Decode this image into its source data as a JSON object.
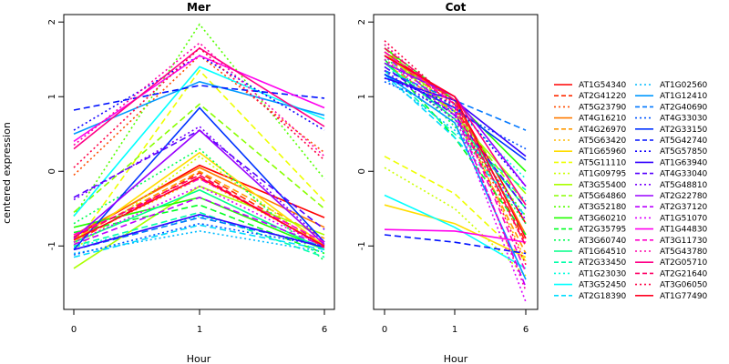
{
  "chart_data": {
    "type": "line",
    "ylabel": "centered expression",
    "panels": [
      {
        "title": "Mer",
        "xlabel": "Hour",
        "x_ticks": [
          "0",
          "1",
          "6"
        ],
        "y_ticks": [
          "-1",
          "0",
          "1",
          "2"
        ],
        "ylim": [
          -1.85,
          2.1
        ],
        "series": [
          {
            "name": "AT1G54340",
            "color": "#ff0000",
            "style": "solid",
            "values": [
              -0.88,
              0.08,
              -0.62
            ]
          },
          {
            "name": "AT2G41220",
            "color": "#ff2b00",
            "style": "dashed",
            "values": [
              -0.95,
              -0.02,
              -0.98
            ]
          },
          {
            "name": "AT5G23790",
            "color": "#ff4d00",
            "style": "dotted",
            "values": [
              -0.05,
              1.55,
              0.25
            ]
          },
          {
            "name": "AT4G16210",
            "color": "#ff7a00",
            "style": "solid",
            "values": [
              -0.85,
              0.05,
              -0.75
            ]
          },
          {
            "name": "AT4G26970",
            "color": "#ff9900",
            "style": "dashed",
            "values": [
              -0.9,
              0.0,
              -0.9
            ]
          },
          {
            "name": "AT5G63420",
            "color": "#ffbb00",
            "style": "dotted",
            "values": [
              -0.92,
              -0.1,
              -1.0
            ]
          },
          {
            "name": "AT1G65960",
            "color": "#ffdd00",
            "style": "solid",
            "values": [
              -0.95,
              0.25,
              -1.0
            ]
          },
          {
            "name": "AT5G11110",
            "color": "#eeff00",
            "style": "dashed",
            "values": [
              -1.0,
              1.35,
              -0.4
            ]
          },
          {
            "name": "AT1G09795",
            "color": "#ccff00",
            "style": "dotted",
            "values": [
              -1.05,
              0.2,
              -1.05
            ]
          },
          {
            "name": "AT3G55400",
            "color": "#aaff00",
            "style": "solid",
            "values": [
              -1.3,
              -0.2,
              -0.85
            ]
          },
          {
            "name": "AT5G64860",
            "color": "#88ff00",
            "style": "dashed",
            "values": [
              -0.55,
              0.9,
              -0.5
            ]
          },
          {
            "name": "AT3G52180",
            "color": "#55ff00",
            "style": "dotted",
            "values": [
              -0.6,
              1.97,
              -0.1
            ]
          },
          {
            "name": "AT3G60210",
            "color": "#22ff00",
            "style": "solid",
            "values": [
              -0.75,
              -0.35,
              -1.05
            ]
          },
          {
            "name": "AT2G35795",
            "color": "#00ff22",
            "style": "dashed",
            "values": [
              -0.82,
              -0.45,
              -1.1
            ]
          },
          {
            "name": "AT3G60740",
            "color": "#00ff55",
            "style": "dotted",
            "values": [
              -0.7,
              0.3,
              -1.2
            ]
          },
          {
            "name": "AT1G64510",
            "color": "#00ff88",
            "style": "solid",
            "values": [
              -0.95,
              -0.25,
              -1.05
            ]
          },
          {
            "name": "AT2G33450",
            "color": "#00ffaa",
            "style": "dashed",
            "values": [
              -1.0,
              -0.55,
              -1.15
            ]
          },
          {
            "name": "AT1G23030",
            "color": "#00ffdd",
            "style": "dotted",
            "values": [
              -1.02,
              -0.6,
              -1.0
            ]
          },
          {
            "name": "AT3G52450",
            "color": "#00ffff",
            "style": "solid",
            "values": [
              -0.6,
              1.4,
              0.7
            ]
          },
          {
            "name": "AT2G18390",
            "color": "#00ddff",
            "style": "dashed",
            "values": [
              -1.15,
              -0.72,
              -1.05
            ]
          },
          {
            "name": "AT1G02560",
            "color": "#00bbff",
            "style": "dotted",
            "values": [
              -1.1,
              -0.8,
              -1.08
            ]
          },
          {
            "name": "AT1G12410",
            "color": "#0099ff",
            "style": "solid",
            "values": [
              0.5,
              1.2,
              0.75
            ]
          },
          {
            "name": "AT2G40690",
            "color": "#0077ff",
            "style": "dashed",
            "values": [
              -1.05,
              -0.62,
              -1.0
            ]
          },
          {
            "name": "AT4G33030",
            "color": "#0055ff",
            "style": "dotted",
            "values": [
              -1.12,
              -0.7,
              -1.0
            ]
          },
          {
            "name": "AT2G33150",
            "color": "#0033ff",
            "style": "solid",
            "values": [
              -1.05,
              0.85,
              -0.95
            ]
          },
          {
            "name": "AT5G42740",
            "color": "#0011ff",
            "style": "dashed",
            "values": [
              0.82,
              1.15,
              0.98
            ]
          },
          {
            "name": "AT5G57850",
            "color": "#1100ff",
            "style": "dotted",
            "values": [
              0.55,
              1.55,
              0.55
            ]
          },
          {
            "name": "AT1G63940",
            "color": "#3300ff",
            "style": "solid",
            "values": [
              -1.05,
              -0.58,
              -1.02
            ]
          },
          {
            "name": "AT4G33040",
            "color": "#5500ff",
            "style": "dashed",
            "values": [
              -0.35,
              0.55,
              -0.78
            ]
          },
          {
            "name": "AT5G48810",
            "color": "#7700ff",
            "style": "dotted",
            "values": [
              -0.38,
              0.6,
              -0.95
            ]
          },
          {
            "name": "AT2G22780",
            "color": "#9900ff",
            "style": "solid",
            "values": [
              -0.9,
              0.55,
              -0.98
            ]
          },
          {
            "name": "AT2G37120",
            "color": "#bb00ff",
            "style": "dashed",
            "values": [
              -0.98,
              -0.35,
              -1.0
            ]
          },
          {
            "name": "AT1G51070",
            "color": "#dd00ff",
            "style": "dotted",
            "values": [
              -0.95,
              -0.2,
              -1.0
            ]
          },
          {
            "name": "AT1G44830",
            "color": "#ff00ee",
            "style": "solid",
            "values": [
              0.4,
              1.55,
              0.85
            ]
          },
          {
            "name": "AT3G11730",
            "color": "#ff00cc",
            "style": "dashed",
            "values": [
              -0.85,
              -0.1,
              -0.95
            ]
          },
          {
            "name": "AT5G43780",
            "color": "#ff00aa",
            "style": "dotted",
            "values": [
              0.35,
              1.72,
              0.2
            ]
          },
          {
            "name": "AT2G05710",
            "color": "#ff0088",
            "style": "solid",
            "values": [
              0.3,
              1.65,
              0.6
            ]
          },
          {
            "name": "AT2G21640",
            "color": "#ff0066",
            "style": "dashed",
            "values": [
              -0.88,
              -0.05,
              -1.02
            ]
          },
          {
            "name": "AT3G06050",
            "color": "#ff0044",
            "style": "dotted",
            "values": [
              0.05,
              1.65,
              0.15
            ]
          },
          {
            "name": "AT1G77490",
            "color": "#ff0022",
            "style": "solid",
            "values": [
              -0.92,
              -0.08,
              -1.0
            ]
          }
        ]
      },
      {
        "title": "Cot",
        "xlabel": "Hour",
        "x_ticks": [
          "0",
          "1",
          "6"
        ],
        "y_ticks": [
          "-1",
          "0",
          "1",
          "2"
        ],
        "ylim": [
          -1.85,
          2.1
        ],
        "series": [
          {
            "name": "AT1G54340",
            "color": "#ff0000",
            "style": "solid",
            "values": [
              1.6,
              0.95,
              -0.7
            ]
          },
          {
            "name": "AT2G41220",
            "color": "#ff2b00",
            "style": "dashed",
            "values": [
              1.55,
              0.9,
              -0.95
            ]
          },
          {
            "name": "AT5G23790",
            "color": "#ff4d00",
            "style": "dotted",
            "values": [
              1.5,
              0.85,
              -1.0
            ]
          },
          {
            "name": "AT4G16210",
            "color": "#ff7a00",
            "style": "solid",
            "values": [
              1.55,
              0.95,
              -0.85
            ]
          },
          {
            "name": "AT4G26970",
            "color": "#ff9900",
            "style": "dashed",
            "values": [
              1.45,
              0.8,
              -1.1
            ]
          },
          {
            "name": "AT5G63420",
            "color": "#ffbb00",
            "style": "dotted",
            "values": [
              1.5,
              0.9,
              -1.2
            ]
          },
          {
            "name": "AT1G65960",
            "color": "#ffdd00",
            "style": "solid",
            "values": [
              -0.45,
              -0.7,
              -1.15
            ]
          },
          {
            "name": "AT5G11110",
            "color": "#eeff00",
            "style": "dashed",
            "values": [
              0.2,
              -0.3,
              -1.2
            ]
          },
          {
            "name": "AT1G09795",
            "color": "#ccff00",
            "style": "dotted",
            "values": [
              0.05,
              -0.5,
              -1.4
            ]
          },
          {
            "name": "AT3G55400",
            "color": "#aaff00",
            "style": "solid",
            "values": [
              1.6,
              0.75,
              -0.3
            ]
          },
          {
            "name": "AT5G64860",
            "color": "#88ff00",
            "style": "dashed",
            "values": [
              1.65,
              0.8,
              -0.45
            ]
          },
          {
            "name": "AT3G52180",
            "color": "#55ff00",
            "style": "dotted",
            "values": [
              1.7,
              0.65,
              -0.6
            ]
          },
          {
            "name": "AT3G60210",
            "color": "#22ff00",
            "style": "solid",
            "values": [
              1.65,
              0.95,
              0.0
            ]
          },
          {
            "name": "AT2G35795",
            "color": "#00ff22",
            "style": "dashed",
            "values": [
              1.5,
              0.45,
              -0.85
            ]
          },
          {
            "name": "AT3G60740",
            "color": "#00ff55",
            "style": "dotted",
            "values": [
              1.55,
              0.6,
              -0.7
            ]
          },
          {
            "name": "AT1G64510",
            "color": "#00ff88",
            "style": "solid",
            "values": [
              1.45,
              0.7,
              -0.5
            ]
          },
          {
            "name": "AT2G33450",
            "color": "#00ffaa",
            "style": "dashed",
            "values": [
              1.35,
              0.5,
              -0.25
            ]
          },
          {
            "name": "AT1G23030",
            "color": "#00ffdd",
            "style": "dotted",
            "values": [
              1.4,
              0.85,
              -0.1
            ]
          },
          {
            "name": "AT3G52450",
            "color": "#00ffff",
            "style": "solid",
            "values": [
              -0.32,
              -0.75,
              -1.3
            ]
          },
          {
            "name": "AT2G18390",
            "color": "#00ddff",
            "style": "dashed",
            "values": [
              1.3,
              0.45,
              -0.6
            ]
          },
          {
            "name": "AT1G02560",
            "color": "#00bbff",
            "style": "dotted",
            "values": [
              1.25,
              0.55,
              -0.4
            ]
          },
          {
            "name": "AT1G12410",
            "color": "#0099ff",
            "style": "solid",
            "values": [
              1.3,
              0.65,
              -1.45
            ]
          },
          {
            "name": "AT2G40690",
            "color": "#0077ff",
            "style": "dashed",
            "values": [
              1.35,
              0.95,
              0.55
            ]
          },
          {
            "name": "AT4G33030",
            "color": "#0055ff",
            "style": "dotted",
            "values": [
              1.2,
              0.8,
              0.3
            ]
          },
          {
            "name": "AT2G33150",
            "color": "#0033ff",
            "style": "solid",
            "values": [
              1.3,
              0.85,
              0.15
            ]
          },
          {
            "name": "AT5G42740",
            "color": "#0011ff",
            "style": "dashed",
            "values": [
              -0.85,
              -0.95,
              -1.1
            ]
          },
          {
            "name": "AT5G57850",
            "color": "#1100ff",
            "style": "dotted",
            "values": [
              1.25,
              0.9,
              -0.2
            ]
          },
          {
            "name": "AT1G63940",
            "color": "#3300ff",
            "style": "solid",
            "values": [
              1.25,
              0.95,
              0.2
            ]
          },
          {
            "name": "AT4G33040",
            "color": "#5500ff",
            "style": "dashed",
            "values": [
              1.4,
              0.75,
              -0.5
            ]
          },
          {
            "name": "AT5G48810",
            "color": "#7700ff",
            "style": "dotted",
            "values": [
              1.35,
              0.7,
              -0.65
            ]
          },
          {
            "name": "AT2G22780",
            "color": "#9900ff",
            "style": "solid",
            "values": [
              1.45,
              1.0,
              -0.2
            ]
          },
          {
            "name": "AT2G37120",
            "color": "#bb00ff",
            "style": "dashed",
            "values": [
              1.55,
              0.8,
              -1.55
            ]
          },
          {
            "name": "AT1G51070",
            "color": "#dd00ff",
            "style": "dotted",
            "values": [
              1.5,
              0.75,
              -1.75
            ]
          },
          {
            "name": "AT1G44830",
            "color": "#ff00ee",
            "style": "solid",
            "values": [
              -0.78,
              -0.8,
              -0.95
            ]
          },
          {
            "name": "AT3G11730",
            "color": "#ff00cc",
            "style": "dashed",
            "values": [
              1.6,
              0.9,
              -1.35
            ]
          },
          {
            "name": "AT5G43780",
            "color": "#ff00aa",
            "style": "dotted",
            "values": [
              1.7,
              0.85,
              -1.6
            ]
          },
          {
            "name": "AT2G05710",
            "color": "#ff0088",
            "style": "solid",
            "values": [
              1.55,
              1.0,
              -0.45
            ]
          },
          {
            "name": "AT2G21640",
            "color": "#ff0066",
            "style": "dashed",
            "values": [
              1.65,
              0.95,
              -1.0
            ]
          },
          {
            "name": "AT3G06050",
            "color": "#ff0044",
            "style": "dotted",
            "values": [
              1.75,
              0.9,
              -1.25
            ]
          },
          {
            "name": "AT1G77490",
            "color": "#ff0022",
            "style": "solid",
            "values": [
              1.55,
              1.0,
              -0.9
            ]
          }
        ]
      }
    ],
    "legend_placement": "right"
  }
}
